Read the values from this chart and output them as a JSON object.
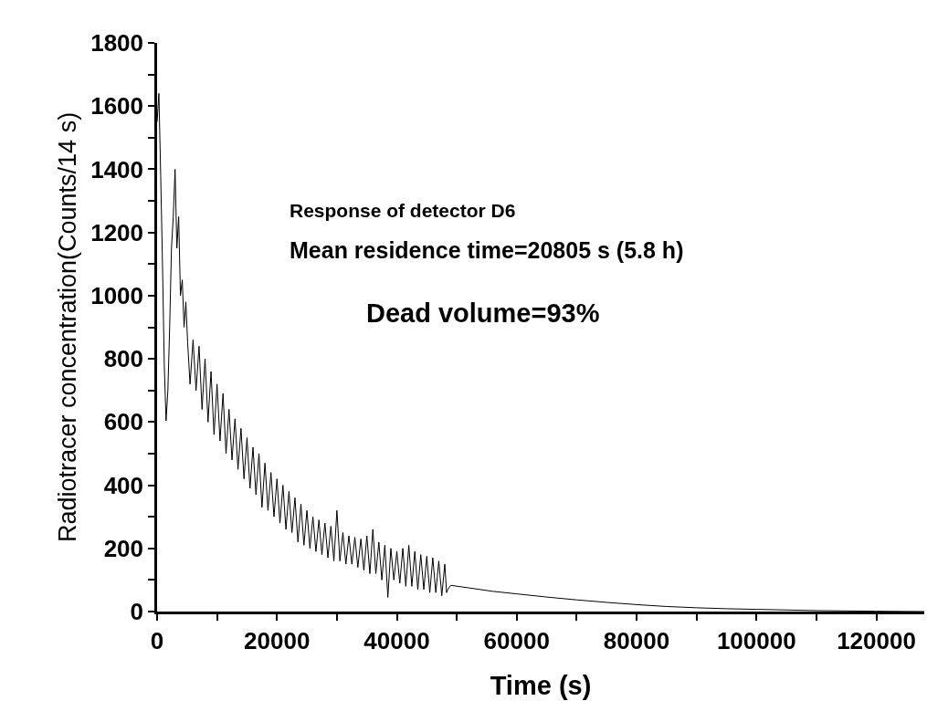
{
  "chart_data": {
    "type": "line",
    "xlabel": "Time (s)",
    "ylabel": "Radiotracer concentration(Counts/14 s)",
    "annotations": [
      "Response of detector D6",
      "Mean residence time=20805 s (5.8 h)",
      "Dead volume=93%"
    ],
    "xlim": [
      0,
      128000
    ],
    "ylim": [
      0,
      1800
    ],
    "xticks": [
      0,
      {
        "value": 10000,
        "label": null
      },
      20000,
      {
        "value": 30000,
        "label": null
      },
      40000,
      {
        "value": 50000,
        "label": null
      },
      60000,
      {
        "value": 70000,
        "label": null
      },
      80000,
      {
        "value": 90000,
        "label": null
      },
      100000,
      {
        "value": 110000,
        "label": null
      },
      120000
    ],
    "yticks": [
      0,
      {
        "value": 100,
        "label": null
      },
      200,
      {
        "value": 300,
        "label": null
      },
      400,
      {
        "value": 500,
        "label": null
      },
      600,
      {
        "value": 700,
        "label": null
      },
      800,
      {
        "value": 900,
        "label": null
      },
      1000,
      {
        "value": 1100,
        "label": null
      },
      1200,
      {
        "value": 1300,
        "label": null
      },
      1400,
      {
        "value": 1500,
        "label": null
      },
      1600,
      {
        "value": 1700,
        "label": null
      },
      1800
    ],
    "marker": "none",
    "line_style": "solid",
    "series": [
      {
        "color": "#000000",
        "x": [
          0,
          300,
          600,
          900,
          1200,
          1500,
          1800,
          2100,
          2400,
          2700,
          3000,
          3300,
          3600,
          3900,
          4200,
          4500,
          4800,
          5100,
          5500,
          6000,
          6500,
          7000,
          7500,
          8000,
          8500,
          9000,
          9500,
          10000,
          10500,
          11000,
          11500,
          12000,
          12500,
          13000,
          13500,
          14000,
          14500,
          15000,
          15500,
          16000,
          16500,
          17000,
          17500,
          18000,
          18500,
          19000,
          19500,
          20000,
          20500,
          21000,
          21500,
          22000,
          22500,
          23000,
          23500,
          24000,
          24500,
          25000,
          25500,
          26000,
          26500,
          27000,
          27500,
          28000,
          28500,
          29000,
          29500,
          30000,
          30500,
          31000,
          31500,
          32000,
          32500,
          33000,
          33500,
          34000,
          34500,
          35000,
          35500,
          36000,
          36500,
          37000,
          37500,
          38000,
          38500,
          39000,
          39500,
          40000,
          40500,
          41000,
          41500,
          42000,
          42500,
          43000,
          43500,
          44000,
          44500,
          45000,
          45500,
          46000,
          46500,
          47000,
          47500,
          48000,
          48300,
          48500,
          49000,
          52000,
          56000,
          60000,
          65000,
          70000,
          75000,
          80000,
          85000,
          90000,
          95000,
          100000,
          105000,
          110000,
          115000,
          120000,
          128000
        ],
        "values": [
          1550,
          1640,
          1380,
          1100,
          780,
          604,
          700,
          900,
          1150,
          1250,
          1400,
          1150,
          1250,
          1000,
          1050,
          900,
          980,
          850,
          720,
          860,
          700,
          840,
          640,
          800,
          600,
          760,
          560,
          720,
          540,
          690,
          500,
          640,
          480,
          610,
          450,
          580,
          420,
          550,
          390,
          520,
          370,
          500,
          330,
          470,
          320,
          440,
          300,
          420,
          280,
          400,
          260,
          380,
          250,
          360,
          220,
          340,
          210,
          320,
          200,
          300,
          190,
          290,
          180,
          280,
          170,
          270,
          160,
          320,
          160,
          250,
          150,
          240,
          150,
          235,
          140,
          230,
          130,
          240,
          120,
          260,
          120,
          220,
          100,
          210,
          45,
          200,
          100,
          190,
          90,
          200,
          80,
          210,
          80,
          190,
          70,
          180,
          70,
          175,
          60,
          170,
          60,
          160,
          50,
          150,
          60,
          70,
          83,
          75,
          64,
          56,
          46,
          37,
          29,
          22,
          16,
          12,
          9,
          7,
          5,
          3,
          2,
          1,
          0
        ]
      }
    ]
  }
}
